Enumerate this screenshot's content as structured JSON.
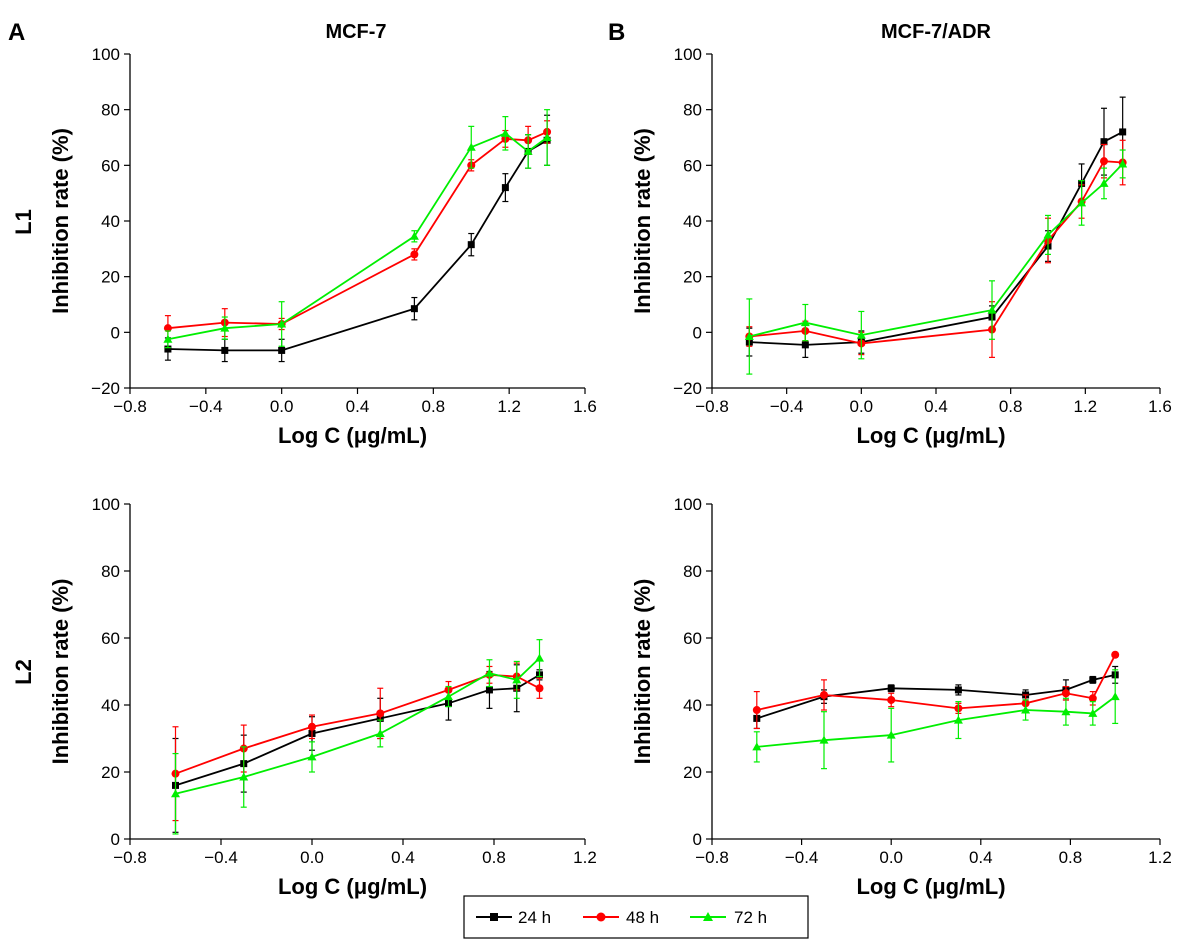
{
  "figure": {
    "panel_letters": [
      "A",
      "B"
    ],
    "column_titles": [
      "MCF-7",
      "MCF-7/ADR"
    ],
    "row_labels": [
      "L1",
      "L2"
    ]
  },
  "legend": {
    "items": [
      {
        "label": "24 h",
        "color": "#000000",
        "marker": "square"
      },
      {
        "label": "48 h",
        "color": "#ff0000",
        "marker": "circle"
      },
      {
        "label": "72 h",
        "color": "#00ee00",
        "marker": "triangle"
      }
    ],
    "placement": "bottom-center"
  },
  "chart_data": [
    {
      "type": "line",
      "title": "MCF-7",
      "row": "L1",
      "xlabel": "Log C (μg/mL)",
      "ylabel": "Inhibition rate (%)",
      "xlim": [
        -0.8,
        1.6
      ],
      "ylim": [
        -20,
        100
      ],
      "xticks": [
        -0.8,
        -0.4,
        0.0,
        0.4,
        0.8,
        1.2,
        1.6
      ],
      "xtick_labels": [
        "−0.8",
        "−0.4",
        "0.0",
        "0.4",
        "0.8",
        "1.2",
        "1.6"
      ],
      "yticks": [
        -20,
        0,
        20,
        40,
        60,
        80,
        100
      ],
      "ytick_labels": [
        "−20",
        "0",
        "20",
        "40",
        "60",
        "80",
        "100"
      ],
      "x": [
        -0.6,
        -0.3,
        0.0,
        0.7,
        1.0,
        1.18,
        1.3,
        1.4
      ],
      "series": [
        {
          "name": "24 h",
          "values": [
            -6,
            -6.5,
            -6.5,
            8.5,
            31.5,
            52,
            65,
            69
          ],
          "errors": [
            4,
            4,
            4,
            4,
            4,
            5,
            6,
            9
          ]
        },
        {
          "name": "48 h",
          "values": [
            1.5,
            3.5,
            3,
            28,
            60,
            69.5,
            69,
            72
          ],
          "errors": [
            4.5,
            5,
            2,
            2,
            2,
            3,
            5,
            4
          ]
        },
        {
          "name": "72 h",
          "values": [
            -2.5,
            1.5,
            3,
            34.5,
            66.5,
            71.5,
            65,
            70
          ],
          "errors": [
            3,
            4,
            8,
            2,
            7.5,
            6,
            6,
            10
          ]
        }
      ]
    },
    {
      "type": "line",
      "title": "MCF-7/ADR",
      "row": "L1",
      "xlabel": "Log C (μg/mL)",
      "ylabel": "Inhibition rate (%)",
      "xlim": [
        -0.8,
        1.6
      ],
      "ylim": [
        -20,
        100
      ],
      "xticks": [
        -0.8,
        -0.4,
        0.0,
        0.4,
        0.8,
        1.2,
        1.6
      ],
      "xtick_labels": [
        "−0.8",
        "−0.4",
        "0.0",
        "0.4",
        "0.8",
        "1.2",
        "1.6"
      ],
      "yticks": [
        -20,
        0,
        20,
        40,
        60,
        80,
        100
      ],
      "ytick_labels": [
        "−20",
        "0",
        "20",
        "40",
        "60",
        "80",
        "100"
      ],
      "x": [
        -0.6,
        -0.3,
        0.0,
        0.7,
        1.0,
        1.18,
        1.3,
        1.4
      ],
      "series": [
        {
          "name": "24 h",
          "values": [
            -3.5,
            -4.5,
            -3.5,
            5.5,
            31,
            53.5,
            68.5,
            72
          ],
          "errors": [
            5,
            4.5,
            4,
            4,
            5.5,
            7,
            12,
            12.5
          ]
        },
        {
          "name": "48 h",
          "values": [
            -1.5,
            0.5,
            -4,
            1,
            33,
            47,
            61.5,
            61
          ],
          "errors": [
            3.5,
            3.5,
            4,
            10,
            8,
            6,
            6,
            8
          ]
        },
        {
          "name": "72 h",
          "values": [
            -1.5,
            3.5,
            -1,
            8,
            35,
            46.5,
            53.5,
            60.5
          ],
          "errors": [
            13.5,
            6.5,
            8.5,
            10.5,
            7,
            8,
            5.5,
            5
          ]
        }
      ]
    },
    {
      "type": "line",
      "title": "",
      "row": "L2",
      "xlabel": "Log C (μg/mL)",
      "ylabel": "Inhibition rate (%)",
      "xlim": [
        -0.8,
        1.2
      ],
      "ylim": [
        0,
        100
      ],
      "xticks": [
        -0.8,
        -0.4,
        0.0,
        0.4,
        0.8,
        1.2
      ],
      "xtick_labels": [
        "−0.8",
        "−0.4",
        "0.0",
        "0.4",
        "0.8",
        "1.2"
      ],
      "yticks": [
        0,
        20,
        40,
        60,
        80,
        100
      ],
      "ytick_labels": [
        "0",
        "20",
        "40",
        "60",
        "80",
        "100"
      ],
      "x": [
        -0.6,
        -0.3,
        0.0,
        0.3,
        0.6,
        0.78,
        0.9,
        1.0
      ],
      "series": [
        {
          "name": "24 h",
          "values": [
            16,
            22.5,
            31.5,
            36,
            40.5,
            44.5,
            45,
            49
          ],
          "errors": [
            14,
            8.5,
            5,
            6,
            5,
            5.5,
            7,
            1.5
          ]
        },
        {
          "name": "48 h",
          "values": [
            19.5,
            27,
            33.5,
            37.5,
            44.5,
            49,
            48.5,
            45
          ],
          "errors": [
            14,
            7,
            3.5,
            7.5,
            2.5,
            2.5,
            4,
            3
          ]
        },
        {
          "name": "72 h",
          "values": [
            13.5,
            18.5,
            24.5,
            31.5,
            42.5,
            49.5,
            47.5,
            54
          ],
          "errors": [
            12,
            9,
            4.5,
            4,
            3,
            4,
            5.5,
            5.5
          ]
        }
      ]
    },
    {
      "type": "line",
      "title": "",
      "row": "L2",
      "xlabel": "Log C (μg/mL)",
      "ylabel": "Inhibition rate (%)",
      "xlim": [
        -0.8,
        1.2
      ],
      "ylim": [
        0,
        100
      ],
      "xticks": [
        -0.8,
        -0.4,
        0.0,
        0.4,
        0.8,
        1.2
      ],
      "xtick_labels": [
        "−0.8",
        "−0.4",
        "0.0",
        "0.4",
        "0.8",
        "1.2"
      ],
      "yticks": [
        0,
        20,
        40,
        60,
        80,
        100
      ],
      "ytick_labels": [
        "0",
        "20",
        "40",
        "60",
        "80",
        "100"
      ],
      "x": [
        -0.6,
        -0.3,
        0.0,
        0.3,
        0.6,
        0.78,
        0.9,
        1.0
      ],
      "series": [
        {
          "name": "24 h",
          "values": [
            36,
            42.5,
            45,
            44.5,
            43,
            44.5,
            47.5,
            49
          ],
          "errors": [
            3,
            2,
            1,
            1.5,
            1.5,
            3,
            1,
            2.5
          ]
        },
        {
          "name": "48 h",
          "values": [
            38.5,
            43,
            41.5,
            39,
            40.5,
            43.5,
            42,
            55
          ],
          "errors": [
            5.5,
            4.5,
            2,
            1.5,
            2.5,
            2,
            2,
            0.5
          ]
        },
        {
          "name": "72 h",
          "values": [
            27.5,
            29.5,
            31,
            35.5,
            38.5,
            38,
            37.5,
            42.5
          ],
          "errors": [
            4.5,
            8.5,
            8,
            5.5,
            3,
            4,
            3.5,
            8
          ]
        }
      ]
    }
  ]
}
